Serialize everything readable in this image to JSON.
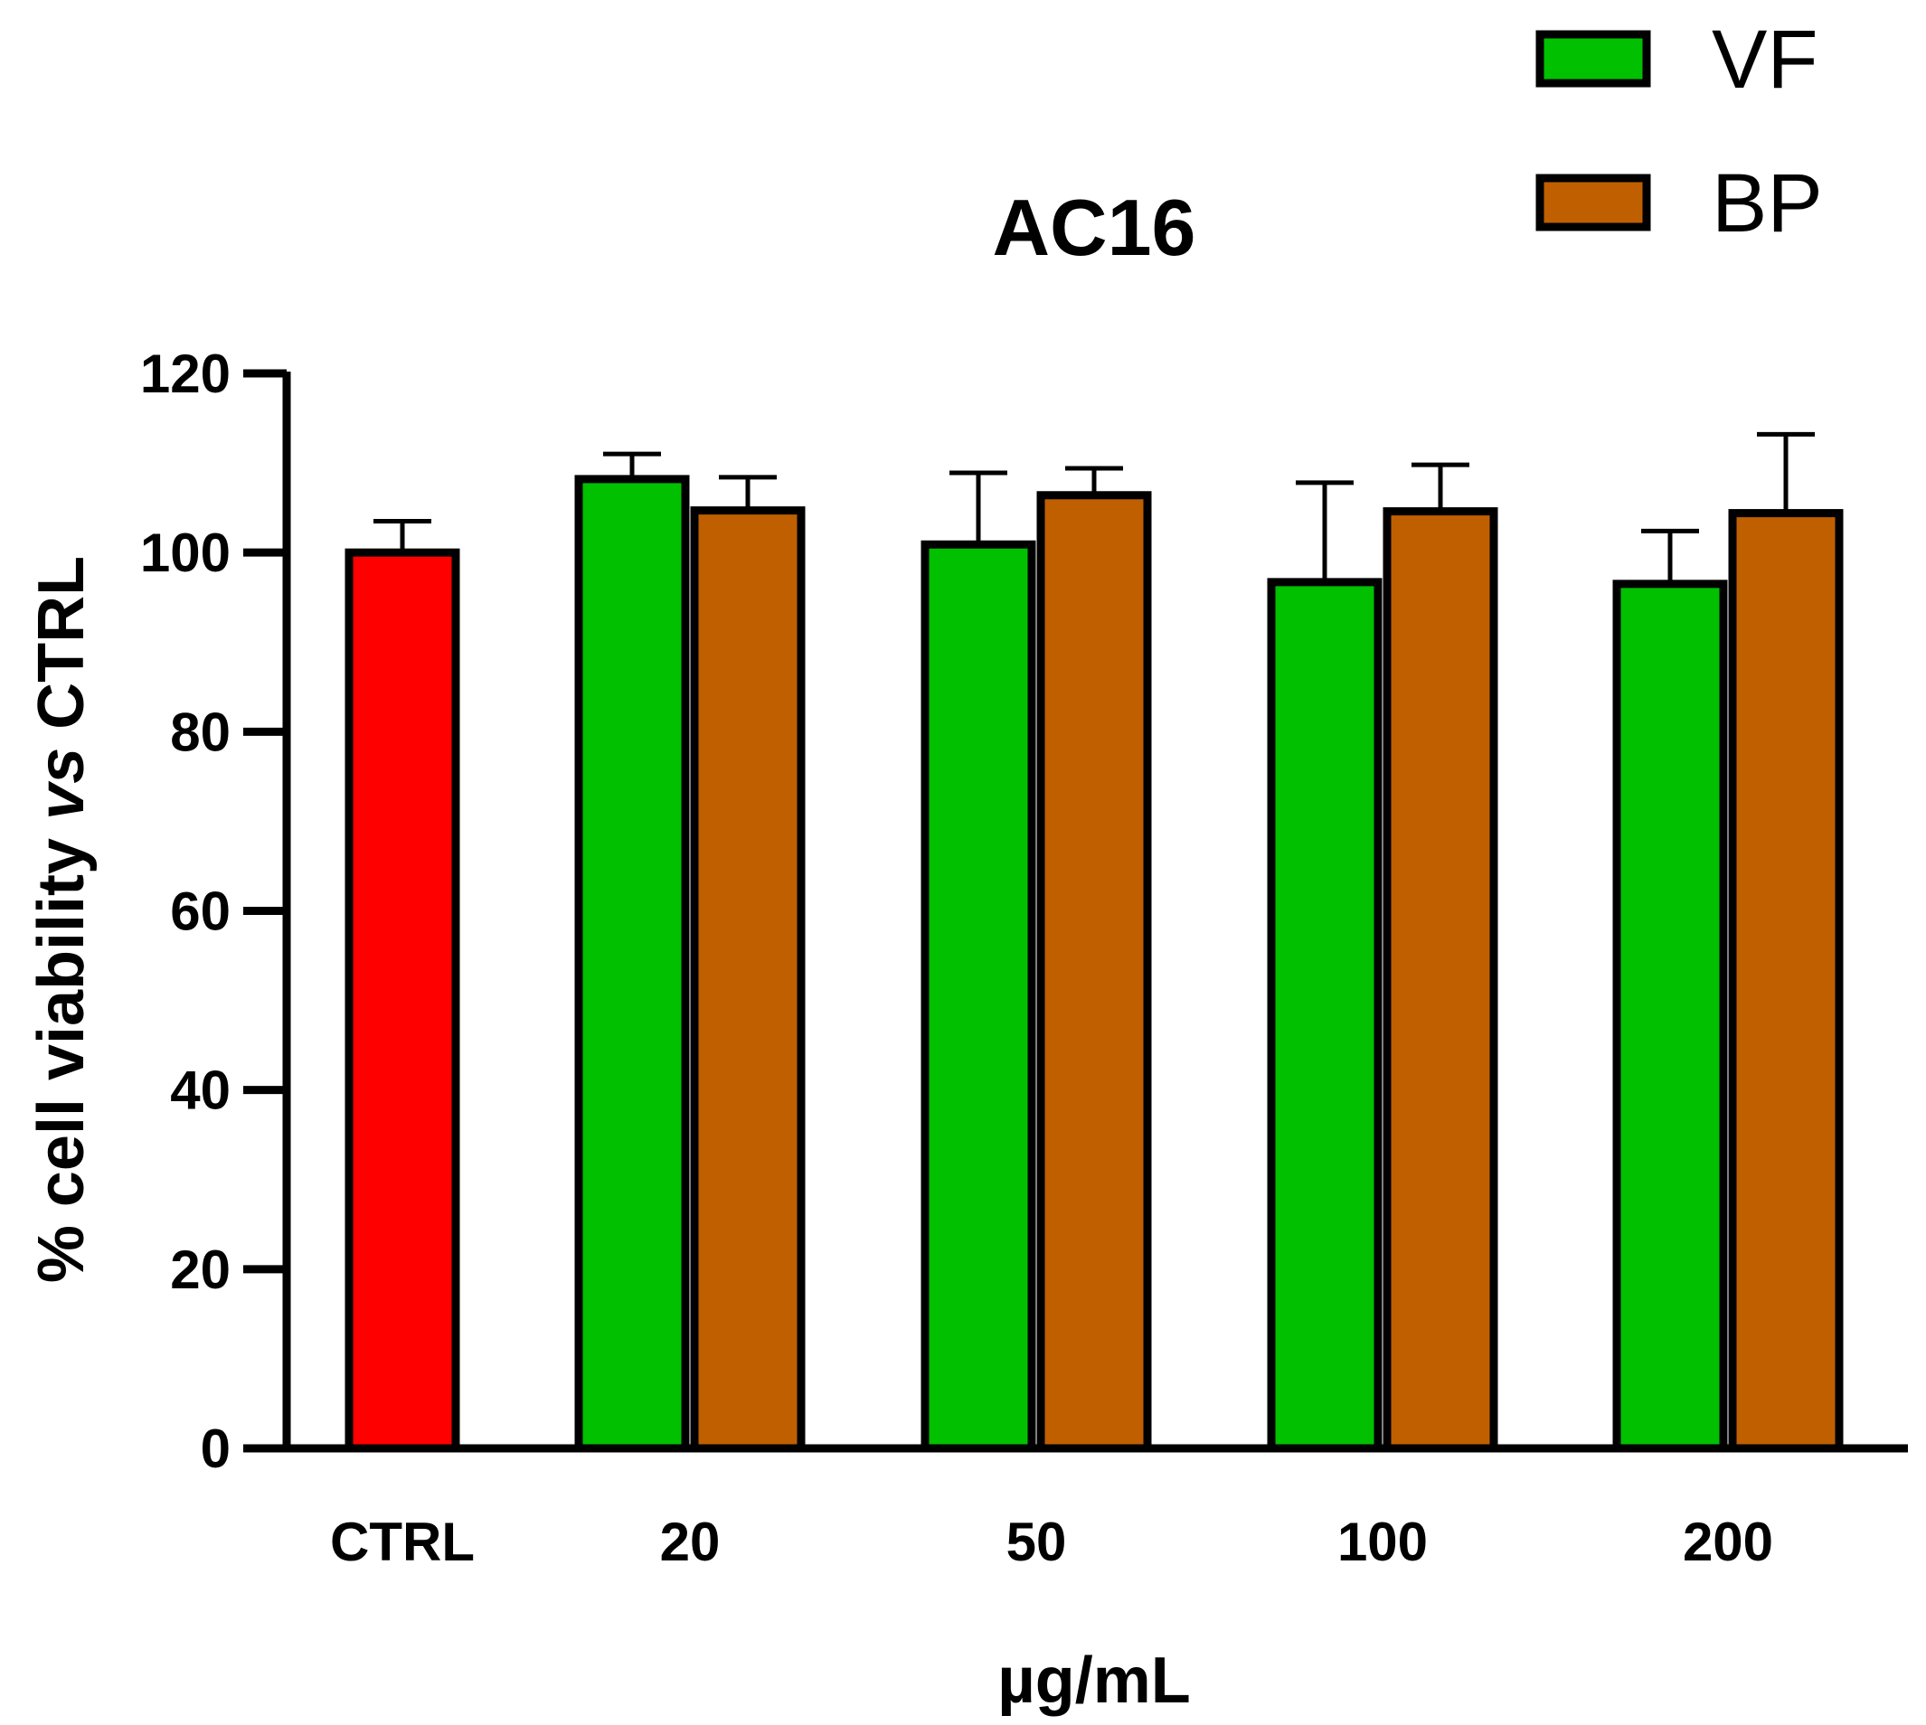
{
  "chart_data": {
    "type": "bar",
    "title": "AC16",
    "xlabel": "µg/mL",
    "ylabel": {
      "prefix": "% cell viability ",
      "italic": "vs",
      "suffix": " CTRL"
    },
    "ylim": [
      0,
      120
    ],
    "yticks": [
      "0",
      "20",
      "40",
      "60",
      "80",
      "100",
      "120"
    ],
    "categories": [
      "CTRL",
      "20",
      "50",
      "100",
      "200"
    ],
    "legend": {
      "position": "top-right",
      "entries": [
        {
          "name": "VF",
          "color": "#00c000"
        },
        {
          "name": "BP",
          "color": "#c05f00"
        }
      ]
    },
    "bars": [
      {
        "category": "CTRL",
        "series": "CTRL",
        "value": 100.0,
        "error": 3.5,
        "color": "#ff0000"
      },
      {
        "category": "20",
        "series": "VF",
        "value": 108.2,
        "error": 2.8,
        "color": "#00c000"
      },
      {
        "category": "20",
        "series": "BP",
        "value": 104.7,
        "error": 3.7,
        "color": "#c05f00"
      },
      {
        "category": "50",
        "series": "VF",
        "value": 100.9,
        "error": 8.0,
        "color": "#00c000"
      },
      {
        "category": "50",
        "series": "BP",
        "value": 106.4,
        "error": 3.0,
        "color": "#c05f00"
      },
      {
        "category": "100",
        "series": "VF",
        "value": 96.7,
        "error": 11.1,
        "color": "#00c000"
      },
      {
        "category": "100",
        "series": "BP",
        "value": 104.6,
        "error": 5.2,
        "color": "#c05f00"
      },
      {
        "category": "200",
        "series": "VF",
        "value": 96.5,
        "error": 5.9,
        "color": "#00c000"
      },
      {
        "category": "200",
        "series": "BP",
        "value": 104.4,
        "error": 8.8,
        "color": "#c05f00"
      }
    ],
    "grid": false
  }
}
